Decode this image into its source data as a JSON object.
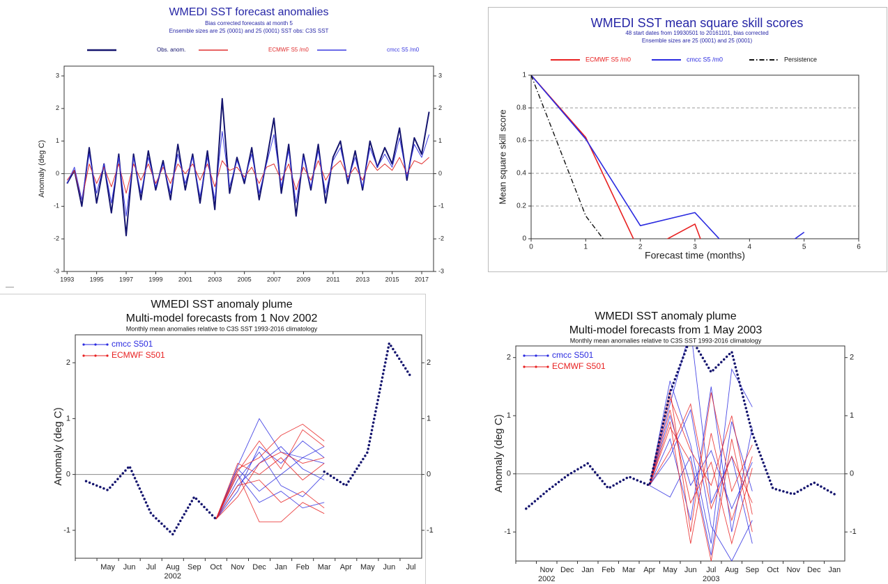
{
  "chart_data": [
    {
      "type": "line",
      "title": "WMEDI SST forecast anomalies",
      "subtitles": [
        "Bias corrected forecasts at month  5",
        "Ensemble sizes are 25 (0001)  and 25 (0001)     SST obs: C3S SST"
      ],
      "y_label": "Anomaly (deg C)",
      "x": [
        1993,
        1993.5,
        1994,
        1994.5,
        1995,
        1995.5,
        1996,
        1996.5,
        1997,
        1997.5,
        1998,
        1998.5,
        1999,
        1999.5,
        2000,
        2000.5,
        2001,
        2001.5,
        2002,
        2002.5,
        2003,
        2003.5,
        2004,
        2004.5,
        2005,
        2005.5,
        2006,
        2006.5,
        2007,
        2007.5,
        2008,
        2008.5,
        2009,
        2009.5,
        2010,
        2010.5,
        2011,
        2011.5,
        2012,
        2012.5,
        2013,
        2013.5,
        2014,
        2014.5,
        2015,
        2015.5,
        2016,
        2016.5,
        2017,
        2017.5
      ],
      "xlim": [
        1992.8,
        2017.8
      ],
      "xticks": [
        1993,
        1995,
        1997,
        1999,
        2001,
        2003,
        2005,
        2007,
        2009,
        2011,
        2013,
        2015,
        2017
      ],
      "ylim": [
        -3,
        3.3
      ],
      "yticks": [
        -3,
        -2,
        -1,
        0,
        1,
        2,
        3
      ],
      "right_axis": true,
      "zero_line": true,
      "series": [
        {
          "name": "Obs. anom.",
          "color": "#14146e",
          "line_style": "solid",
          "values": [
            -0.3,
            0.1,
            -1.0,
            0.8,
            -0.9,
            0.3,
            -1.2,
            0.6,
            -1.9,
            0.6,
            -0.8,
            0.7,
            -0.5,
            0.4,
            -0.8,
            0.9,
            -0.5,
            0.6,
            -0.9,
            0.7,
            -1.1,
            2.3,
            -0.6,
            0.5,
            -0.3,
            0.8,
            -0.8,
            0.4,
            1.7,
            -0.6,
            0.9,
            -1.3,
            0.6,
            -0.5,
            0.9,
            -0.9,
            0.5,
            1.0,
            -0.3,
            0.7,
            -0.5,
            1.0,
            0.2,
            0.8,
            0.3,
            1.4,
            -0.2,
            1.1,
            0.6,
            1.9
          ]
        },
        {
          "name": "ECMWF S5  /m0",
          "color": "#e03030",
          "line_style": "solid",
          "values": [
            -0.2,
            0.1,
            -0.8,
            0.3,
            -0.3,
            0.2,
            -0.4,
            0.3,
            -0.6,
            0.3,
            -0.2,
            0.3,
            -0.3,
            0.2,
            -0.3,
            0.3,
            0.0,
            0.3,
            -0.2,
            0.3,
            -0.4,
            0.4,
            0.1,
            0.2,
            -0.1,
            0.2,
            -0.3,
            0.2,
            0.3,
            -0.2,
            0.3,
            -0.5,
            0.2,
            -0.2,
            0.4,
            -0.2,
            0.2,
            0.4,
            -0.1,
            0.2,
            -0.2,
            0.4,
            0.1,
            0.3,
            0.1,
            0.5,
            0.0,
            0.4,
            0.3,
            0.5
          ]
        },
        {
          "name": "cmcc S5  /m0",
          "color": "#3a3ae0",
          "line_style": "solid",
          "values": [
            -0.3,
            0.2,
            -0.8,
            0.6,
            -0.6,
            0.3,
            -0.9,
            0.5,
            -1.3,
            0.5,
            -0.6,
            0.5,
            -0.4,
            0.3,
            -0.6,
            0.6,
            -0.3,
            0.5,
            -0.7,
            0.5,
            -0.8,
            1.3,
            -0.4,
            0.4,
            -0.2,
            0.6,
            -0.6,
            0.3,
            1.2,
            -0.4,
            0.7,
            -0.9,
            0.5,
            -0.4,
            0.7,
            -0.6,
            0.4,
            0.8,
            -0.2,
            0.5,
            -0.4,
            0.8,
            0.2,
            0.6,
            0.2,
            1.1,
            -0.1,
            0.9,
            0.5,
            1.2
          ]
        }
      ]
    },
    {
      "type": "line",
      "title": "WMEDI SST mean square skill scores",
      "subtitles": [
        "48 start dates from 19930501 to 20161101, bias corrected",
        "Ensemble sizes are 25 (0001)  and 25 (0001)"
      ],
      "x_label": "Forecast time (months)",
      "y_label": "Mean square skill score",
      "x": [
        0,
        1,
        2,
        3,
        4,
        5
      ],
      "xlim": [
        0,
        6
      ],
      "xticks": [
        0,
        1,
        2,
        3,
        4,
        5,
        6
      ],
      "ylim": [
        0,
        1
      ],
      "yticks": [
        0,
        0.2,
        0.4,
        0.6,
        0.8,
        1
      ],
      "grid": true,
      "series": [
        {
          "name": "ECMWF S5  /m0",
          "color": "#e82020",
          "line_style": "solid",
          "values": [
            1,
            0.62,
            -0.09,
            0.09,
            -0.8,
            0
          ]
        },
        {
          "name": "cmcc S5  /m0",
          "color": "#2a2ae0",
          "line_style": "solid",
          "values": [
            1,
            0.61,
            0.08,
            0.16,
            -0.2,
            0.04
          ]
        },
        {
          "name": "Persistence",
          "color": "#111111",
          "line_style": "dash-dot",
          "values": [
            1,
            0.14,
            -0.3,
            null,
            null,
            null
          ]
        }
      ]
    },
    {
      "type": "plume",
      "title": "WMEDI SST anomaly plume",
      "subtitles": [
        "Multi-model forecasts from 1 Nov 2002",
        "Monthly mean anomalies relative to C3S SST 1993-2016 climatology"
      ],
      "y_label": "Anomaly (deg C)",
      "categories": [
        null,
        "May",
        "Jun",
        "Jul",
        "Aug",
        "Sep",
        "Oct",
        "Nov",
        "Dec",
        "Jan",
        "Feb",
        "Mar",
        "Apr",
        "May",
        "Jun",
        "Jul"
      ],
      "year_row": [
        null,
        null,
        null,
        null,
        "2002",
        null,
        null,
        null,
        null,
        null,
        null,
        null,
        null,
        null,
        null,
        null
      ],
      "ylim": [
        -1.5,
        2.5
      ],
      "yticks": [
        -1,
        0,
        1,
        2
      ],
      "right_axis": true,
      "zero_line": true,
      "observed": {
        "color": "#14146e",
        "line_style": "dotted",
        "values": [
          -0.12,
          -0.28,
          0.15,
          -0.7,
          -1.07,
          -0.4,
          -0.8,
          null,
          null,
          null,
          null,
          0.05,
          -0.2,
          0.4,
          2.35,
          1.75
        ]
      },
      "series": [
        {
          "name": "cmcc S501",
          "color": "#2a2ae0",
          "members": [
            [
              null,
              null,
              null,
              null,
              null,
              null,
              -0.8,
              0.15,
              1.0,
              0.4,
              0.3,
              0.2,
              null,
              null,
              null,
              null
            ],
            [
              null,
              null,
              null,
              null,
              null,
              null,
              -0.8,
              -0.3,
              0.5,
              0.2,
              0.6,
              0.3,
              null,
              null,
              null,
              null
            ],
            [
              null,
              null,
              null,
              null,
              null,
              null,
              -0.8,
              0.0,
              -0.5,
              -0.3,
              -0.6,
              -0.5,
              null,
              null,
              null,
              null
            ],
            [
              null,
              null,
              null,
              null,
              null,
              null,
              -0.8,
              -0.2,
              0.2,
              0.5,
              0.1,
              -0.1,
              null,
              null,
              null,
              null
            ],
            [
              null,
              null,
              null,
              null,
              null,
              null,
              -0.8,
              0.1,
              -0.3,
              0.0,
              0.3,
              0.5,
              null,
              null,
              null,
              null
            ],
            [
              null,
              null,
              null,
              null,
              null,
              null,
              -0.8,
              -0.1,
              0.4,
              -0.2,
              -0.4,
              0.0,
              null,
              null,
              null,
              null
            ]
          ]
        },
        {
          "name": "ECMWF S501",
          "color": "#e82020",
          "members": [
            [
              null,
              null,
              null,
              null,
              null,
              null,
              -0.8,
              0.0,
              -0.85,
              -0.85,
              -0.5,
              -0.7,
              null,
              null,
              null,
              null
            ],
            [
              null,
              null,
              null,
              null,
              null,
              null,
              -0.8,
              0.1,
              0.3,
              0.7,
              0.9,
              0.6,
              null,
              null,
              null,
              null
            ],
            [
              null,
              null,
              null,
              null,
              null,
              null,
              -0.8,
              -0.4,
              0.2,
              0.4,
              0.2,
              0.3,
              null,
              null,
              null,
              null
            ],
            [
              null,
              null,
              null,
              null,
              null,
              null,
              -0.8,
              0.05,
              0.6,
              0.1,
              0.8,
              0.5,
              null,
              null,
              null,
              null
            ],
            [
              null,
              null,
              null,
              null,
              null,
              null,
              -0.8,
              -0.2,
              -0.1,
              -0.5,
              -0.3,
              -0.6,
              null,
              null,
              null,
              null
            ],
            [
              null,
              null,
              null,
              null,
              null,
              null,
              -0.8,
              0.2,
              0.0,
              0.3,
              -0.1,
              0.2,
              null,
              null,
              null,
              null
            ]
          ]
        }
      ]
    },
    {
      "type": "plume",
      "title": "WMEDI SST anomaly plume",
      "subtitles": [
        "Multi-model forecasts from 1 May 2003",
        "Monthly mean anomalies relative to C3S SST 1993-2016 climatology"
      ],
      "y_label": "Anomaly (deg C)",
      "categories": [
        null,
        "Nov",
        "Dec",
        "Jan",
        "Feb",
        "Mar",
        "Apr",
        "May",
        "Jun",
        "Jul",
        "Aug",
        "Sep",
        "Oct",
        "Nov",
        "Dec",
        "Jan"
      ],
      "year_row": [
        null,
        "2002",
        null,
        null,
        null,
        null,
        null,
        null,
        null,
        "2003",
        null,
        null,
        null,
        null,
        null,
        null
      ],
      "ylim": [
        -1.5,
        2.2
      ],
      "yticks": [
        -1,
        0,
        1,
        2
      ],
      "right_axis": true,
      "zero_line": true,
      "observed": {
        "color": "#14146e",
        "line_style": "dotted",
        "values": [
          -0.6,
          -0.3,
          -0.03,
          0.18,
          -0.25,
          -0.05,
          -0.2,
          1.4,
          2.35,
          1.75,
          2.1,
          0.7,
          -0.25,
          -0.35,
          -0.15,
          -0.35
        ]
      },
      "series": [
        {
          "name": "cmcc S501",
          "color": "#2a2ae0",
          "members": [
            [
              null,
              null,
              null,
              null,
              null,
              null,
              -0.2,
              1.6,
              0.5,
              -1.2,
              1.8,
              1.15,
              null,
              null,
              null,
              null
            ],
            [
              null,
              null,
              null,
              null,
              null,
              null,
              -0.2,
              1.2,
              2.5,
              -0.5,
              0.3,
              -1.2,
              null,
              null,
              null,
              null
            ],
            [
              null,
              null,
              null,
              null,
              null,
              null,
              -0.2,
              0.6,
              -0.8,
              1.5,
              -1.0,
              0.8,
              null,
              null,
              null,
              null
            ],
            [
              null,
              null,
              null,
              null,
              null,
              null,
              -0.2,
              -0.4,
              0.3,
              -1.4,
              0.9,
              -0.3,
              null,
              null,
              null,
              null
            ],
            [
              null,
              null,
              null,
              null,
              null,
              null,
              -0.2,
              1.0,
              -0.2,
              0.4,
              -0.6,
              0.2,
              null,
              null,
              null,
              null
            ],
            [
              null,
              null,
              null,
              null,
              null,
              null,
              -0.2,
              0.3,
              1.1,
              -0.9,
              -1.5,
              -0.8,
              null,
              null,
              null,
              null
            ]
          ]
        },
        {
          "name": "ECMWF S501",
          "color": "#e82020",
          "members": [
            [
              null,
              null,
              null,
              null,
              null,
              null,
              -0.2,
              1.45,
              -1.0,
              1.4,
              -0.3,
              0.5,
              null,
              null,
              null,
              null
            ],
            [
              null,
              null,
              null,
              null,
              null,
              null,
              -0.2,
              0.8,
              0.2,
              -1.5,
              0.6,
              -1.0,
              null,
              null,
              null,
              null
            ],
            [
              null,
              null,
              null,
              null,
              null,
              null,
              -0.2,
              1.1,
              -0.5,
              0.2,
              -1.2,
              0.1,
              null,
              null,
              null,
              null
            ],
            [
              null,
              null,
              null,
              null,
              null,
              null,
              -0.2,
              0.4,
              1.2,
              -0.6,
              0.3,
              -0.5,
              null,
              null,
              null,
              null
            ],
            [
              null,
              null,
              null,
              null,
              null,
              null,
              -0.2,
              0.9,
              -1.2,
              0.7,
              -0.8,
              0.3,
              null,
              null,
              null,
              null
            ],
            [
              null,
              null,
              null,
              null,
              null,
              null,
              -0.2,
              1.3,
              0.4,
              -0.2,
              1.0,
              -0.7,
              null,
              null,
              null,
              null
            ]
          ]
        }
      ]
    }
  ]
}
